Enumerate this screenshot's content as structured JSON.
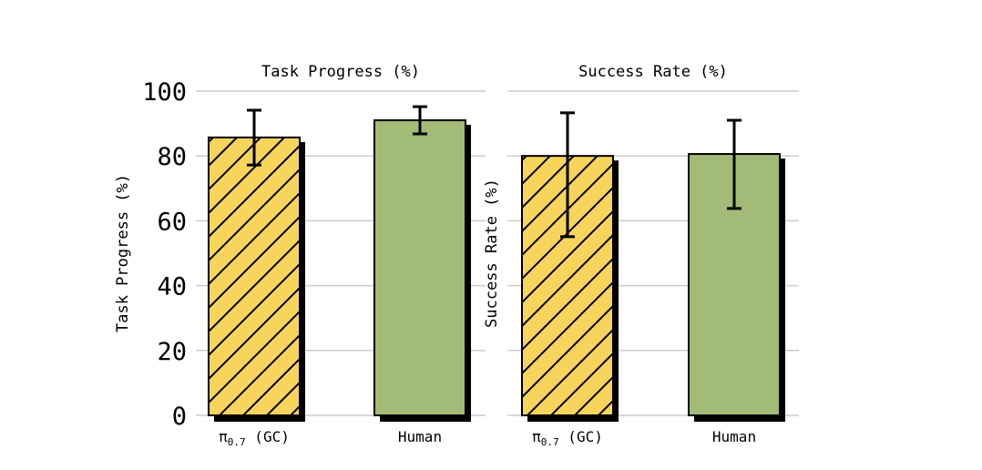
{
  "colors": {
    "pi": "#f7d45c",
    "human": "#a2bb76",
    "grid": "#cccccc",
    "edge": "#000000"
  },
  "chart_data": [
    {
      "type": "bar",
      "title": "Task Progress (%)",
      "xlabel": "",
      "ylabel": "Task Progress (%)",
      "ylim": [
        0,
        100
      ],
      "yticks": [
        "0",
        "20",
        "40",
        "60",
        "80",
        "100"
      ],
      "show_ytick_labels": true,
      "grid": true,
      "categories": [
        {
          "main": "π",
          "sub": "0.7",
          "rest": " (GC)"
        },
        {
          "main": "Human",
          "sub": "",
          "rest": ""
        }
      ],
      "values": [
        85.7,
        91.0
      ],
      "err_low": [
        77.2,
        86.8
      ],
      "err_high": [
        94.1,
        95.2
      ],
      "hatched": [
        true,
        false
      ]
    },
    {
      "type": "bar",
      "title": "Success Rate (%)",
      "xlabel": "",
      "ylabel": "Success Rate (%)",
      "ylim": [
        0,
        100
      ],
      "yticks": [
        "0",
        "20",
        "40",
        "60",
        "80",
        "100"
      ],
      "show_ytick_labels": false,
      "grid": true,
      "categories": [
        {
          "main": "π",
          "sub": "0.7",
          "rest": " (GC)"
        },
        {
          "main": "Human",
          "sub": "",
          "rest": ""
        }
      ],
      "values": [
        80.0,
        80.6
      ],
      "err_low": [
        55.1,
        63.8
      ],
      "err_high": [
        93.3,
        91.0
      ],
      "hatched": [
        true,
        false
      ]
    }
  ]
}
